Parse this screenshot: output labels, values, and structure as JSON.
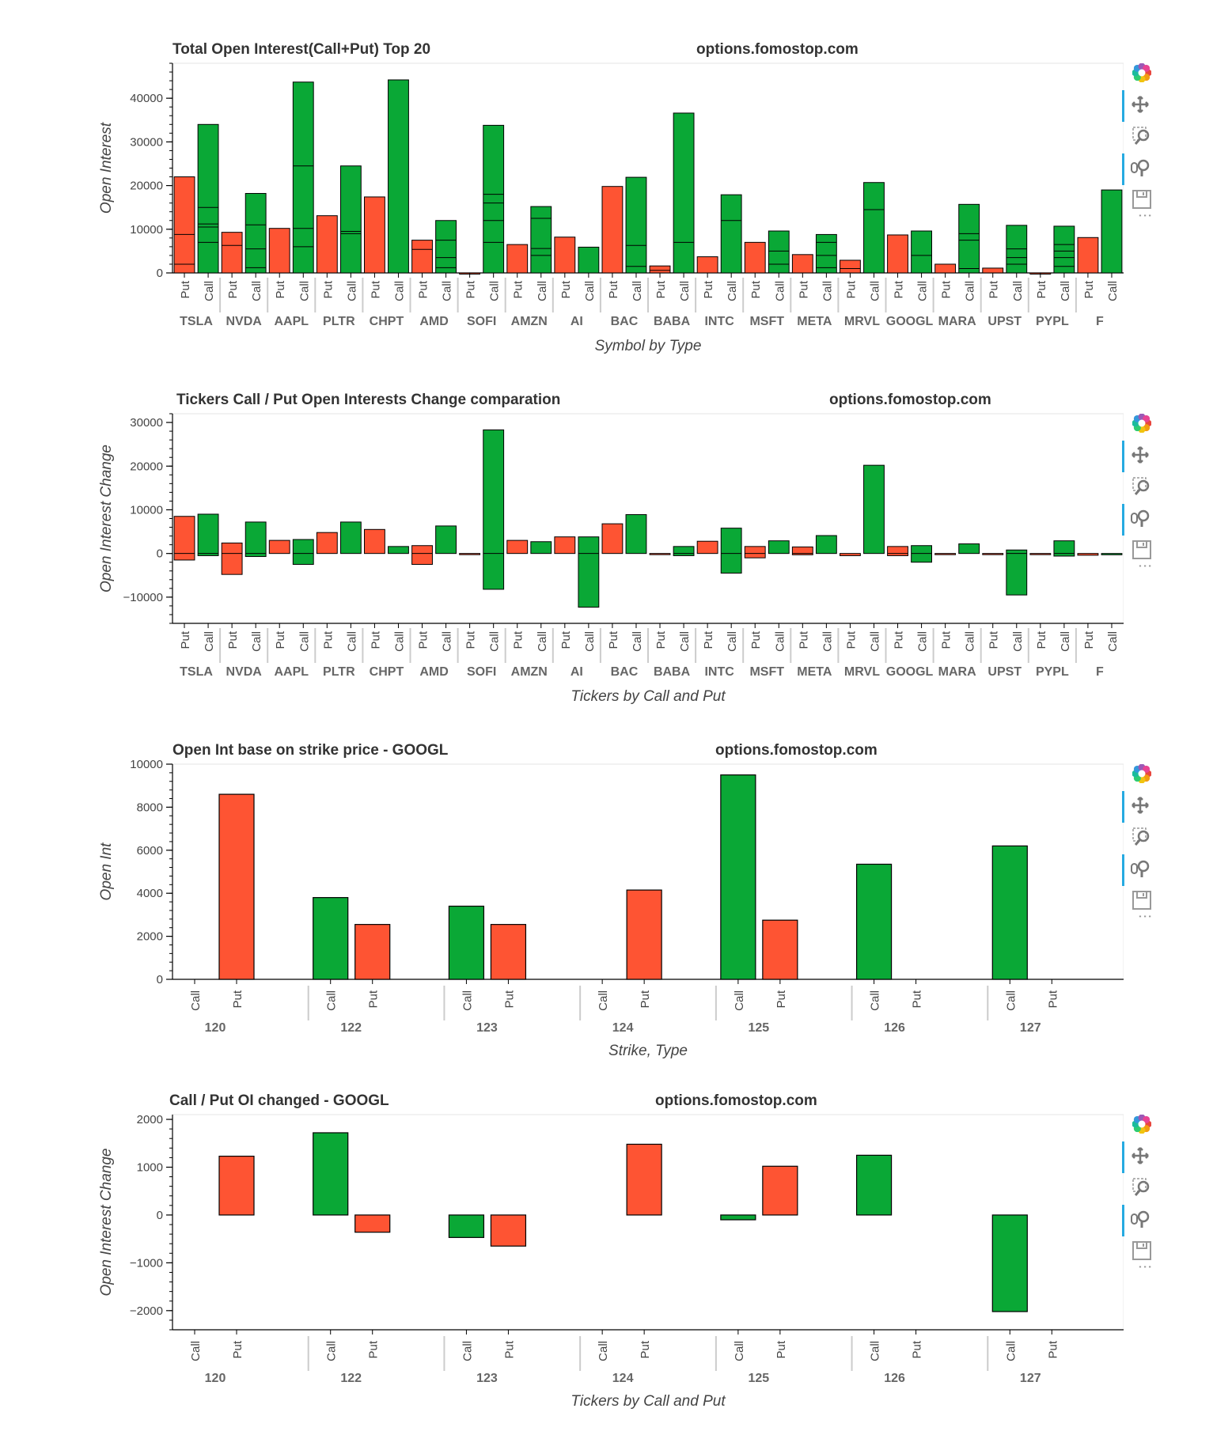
{
  "site": "options.fomostop.com",
  "colors": {
    "put": "#fe5433",
    "call": "#0aa836",
    "outline": "#000000",
    "axis": "#000000",
    "frame": "#e5e5e5",
    "sep": "#cccccc",
    "toolbar_active": "#26aae1"
  },
  "toolbar": {
    "tools": [
      {
        "name": "bokeh-logo-icon"
      },
      {
        "name": "pan-tool-icon"
      },
      {
        "name": "box-zoom-tool-icon"
      },
      {
        "name": "wheel-zoom-tool-icon"
      },
      {
        "name": "save-tool-icon"
      }
    ],
    "more_label": "⋮"
  },
  "chart_data": [
    {
      "type": "bar",
      "title": "Total Open Interest(Call+Put) Top 20",
      "site_label": "options.fomostop.com",
      "xlabel": "Symbol by Type",
      "ylabel": "Open Interest",
      "ylim": [
        0,
        48000
      ],
      "yticks": [
        0,
        10000,
        20000,
        30000,
        40000
      ],
      "yticks_labels": [
        "0",
        "10000",
        "20000",
        "30000",
        "40000"
      ],
      "categories": [
        "TSLA",
        "NVDA",
        "AAPL",
        "PLTR",
        "CHPT",
        "AMD",
        "SOFI",
        "AMZN",
        "AI",
        "BAC",
        "BABA",
        "INTC",
        "MSFT",
        "META",
        "MRVL",
        "GOOGL",
        "MARA",
        "UPST",
        "PYPL",
        "F"
      ],
      "types": [
        "Put",
        "Call"
      ],
      "series": [
        {
          "name": "Put",
          "values": [
            22000,
            9300,
            10200,
            13100,
            17400,
            7500,
            0,
            6500,
            8200,
            19800,
            1600,
            3700,
            7000,
            4200,
            2900,
            8700,
            2000,
            1100,
            0,
            8100
          ]
        },
        {
          "name": "Call",
          "values": [
            34000,
            18200,
            43700,
            24500,
            44200,
            12000,
            33800,
            15200,
            5900,
            21900,
            36600,
            17900,
            9600,
            8800,
            20700,
            9600,
            15700,
            10900,
            10700,
            19000
          ]
        }
      ],
      "stack_lines": {
        "Put": [
          [
            2000,
            8800
          ],
          [
            6300
          ],
          [],
          [],
          [],
          [
            5400
          ],
          [],
          [],
          [],
          [],
          [
            600
          ],
          [],
          [],
          [],
          [
            1000
          ],
          [],
          [],
          [],
          [],
          []
        ],
        "Call": [
          [
            7000,
            10500,
            11200,
            15000
          ],
          [
            1200,
            5500,
            11000
          ],
          [
            6000,
            10200,
            24500
          ],
          [
            9000,
            9500
          ],
          [],
          [
            1200,
            3500,
            7500
          ],
          [
            7000,
            12000,
            16000,
            18000
          ],
          [
            4000,
            5600,
            12500
          ],
          [],
          [
            1500,
            6300
          ],
          [
            7000
          ],
          [
            12000
          ],
          [
            2000,
            5000
          ],
          [
            1200,
            4000,
            7000
          ],
          [
            14500
          ],
          [
            4000
          ],
          [
            1000,
            7500,
            9000
          ],
          [
            2000,
            3500,
            5500
          ],
          [
            1500,
            3500,
            5000,
            6500
          ],
          []
        ]
      }
    },
    {
      "type": "bar",
      "title": "Tickers Call / Put Open Interests Change comparation",
      "site_label": "options.fomostop.com",
      "xlabel": "Tickers by Call and Put",
      "ylabel": "Open Interest Change",
      "ylim": [
        -16000,
        32000
      ],
      "yticks": [
        -10000,
        0,
        10000,
        20000,
        30000
      ],
      "yticks_labels": [
        "−10000",
        "0",
        "10000",
        "20000",
        "30000"
      ],
      "categories": [
        "TSLA",
        "NVDA",
        "AAPL",
        "PLTR",
        "CHPT",
        "AMD",
        "SOFI",
        "AMZN",
        "AI",
        "BAC",
        "BABA",
        "INTC",
        "MSFT",
        "META",
        "MRVL",
        "GOOGL",
        "MARA",
        "UPST",
        "PYPL",
        "F"
      ],
      "types": [
        "Put",
        "Call"
      ],
      "series": [
        {
          "name": "Put",
          "ranges": [
            [
              -1500,
              8500
            ],
            [
              -4800,
              2400
            ],
            [
              0,
              3000
            ],
            [
              0,
              4800
            ],
            [
              0,
              5500
            ],
            [
              -2500,
              1800
            ],
            [
              0,
              0
            ],
            [
              0,
              3000
            ],
            [
              0,
              3800
            ],
            [
              0,
              6800
            ],
            [
              -200,
              0
            ],
            [
              0,
              2800
            ],
            [
              -1000,
              1600
            ],
            [
              -300,
              1500
            ],
            [
              -500,
              0
            ],
            [
              -500,
              1600
            ],
            [
              -200,
              0
            ],
            [
              -200,
              0
            ],
            [
              0,
              0
            ],
            [
              -400,
              0
            ]
          ]
        },
        {
          "name": "Call",
          "ranges": [
            [
              -500,
              9000
            ],
            [
              -700,
              7200
            ],
            [
              -2500,
              3200
            ],
            [
              0,
              7200
            ],
            [
              0,
              1600
            ],
            [
              0,
              6300
            ],
            [
              -8200,
              28300
            ],
            [
              0,
              2700
            ],
            [
              -12300,
              3800
            ],
            [
              0,
              8900
            ],
            [
              -500,
              1600
            ],
            [
              -4500,
              5800
            ],
            [
              0,
              2900
            ],
            [
              0,
              4100
            ],
            [
              0,
              20200
            ],
            [
              -2000,
              1800
            ],
            [
              0,
              2200
            ],
            [
              -9500,
              800
            ],
            [
              -600,
              2900
            ],
            [
              -300,
              0
            ]
          ]
        }
      ]
    },
    {
      "type": "bar",
      "title": "Open Int base on strike price - GOOGL",
      "site_label": "options.fomostop.com",
      "xlabel": "Strike, Type",
      "ylabel": "Open Int",
      "ylim": [
        0,
        10000
      ],
      "yticks": [
        0,
        2000,
        4000,
        6000,
        8000,
        10000
      ],
      "yticks_labels": [
        "0",
        "2000",
        "4000",
        "6000",
        "8000",
        "10000"
      ],
      "categories": [
        "120",
        "122",
        "123",
        "124",
        "125",
        "126",
        "127"
      ],
      "types": [
        "Call",
        "Put"
      ],
      "series": [
        {
          "name": "Call",
          "values": [
            0,
            3800,
            3400,
            0,
            9500,
            5350,
            6200
          ]
        },
        {
          "name": "Put",
          "values": [
            8600,
            2550,
            2550,
            4150,
            2750,
            0,
            0
          ]
        }
      ]
    },
    {
      "type": "bar",
      "title": "Call / Put OI changed - GOOGL",
      "site_label": "options.fomostop.com",
      "xlabel": "Tickers by Call and Put",
      "ylabel": "Open Interest Change",
      "ylim": [
        -2400,
        2100
      ],
      "yticks": [
        -2000,
        -1000,
        0,
        1000,
        2000
      ],
      "yticks_labels": [
        "−2000",
        "−1000",
        "0",
        "1000",
        "2000"
      ],
      "categories": [
        "120",
        "122",
        "123",
        "124",
        "125",
        "126",
        "127"
      ],
      "types": [
        "Call",
        "Put"
      ],
      "series": [
        {
          "name": "Call",
          "values": [
            0,
            1720,
            -470,
            0,
            -100,
            1250,
            -2020
          ]
        },
        {
          "name": "Put",
          "values": [
            1230,
            -360,
            -650,
            1480,
            1020,
            0,
            0
          ]
        }
      ]
    }
  ]
}
